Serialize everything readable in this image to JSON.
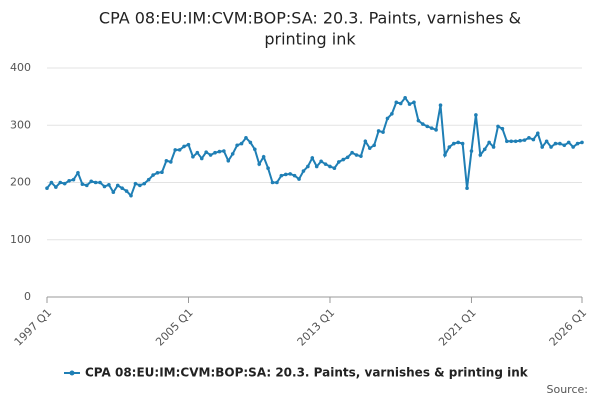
{
  "chart_data": {
    "type": "line",
    "title": [
      "CPA 08:EU:IM:CVM:BOP:SA: 20.3. Paints, varnishes &",
      "printing ink"
    ],
    "categories": [
      "1997 Q1",
      null,
      null,
      null,
      null,
      null,
      null,
      null,
      null,
      null,
      null,
      null,
      null,
      null,
      null,
      null,
      null,
      null,
      null,
      null,
      null,
      null,
      null,
      null,
      null,
      null,
      null,
      null,
      null,
      null,
      null,
      null,
      "2005 Q1",
      null,
      null,
      null,
      null,
      null,
      null,
      null,
      null,
      null,
      null,
      null,
      null,
      null,
      null,
      null,
      null,
      null,
      null,
      null,
      null,
      null,
      null,
      null,
      null,
      null,
      null,
      null,
      null,
      null,
      null,
      null,
      "2013 Q1",
      null,
      null,
      null,
      null,
      null,
      null,
      null,
      null,
      null,
      null,
      null,
      null,
      null,
      null,
      null,
      null,
      null,
      null,
      null,
      null,
      null,
      null,
      null,
      null,
      null,
      null,
      null,
      null,
      null,
      null,
      null,
      "2021 Q1",
      null,
      null,
      null,
      null,
      null,
      null,
      null,
      null,
      null,
      null,
      null,
      null,
      null,
      null,
      null,
      null,
      null,
      null,
      null,
      null,
      null,
      null,
      null,
      null,
      "2026 Q1"
    ],
    "series": [
      {
        "name": "CPA 08:EU:IM:CVM:BOP:SA: 20.3. Paints, varnishes & printing ink",
        "color": "#1f7fb5",
        "values": [
          190,
          200,
          192,
          200,
          198,
          203,
          205,
          217,
          197,
          195,
          202,
          200,
          200,
          193,
          196,
          183,
          195,
          190,
          185,
          177,
          198,
          195,
          198,
          205,
          213,
          217,
          218,
          238,
          236,
          257,
          257,
          263,
          266,
          245,
          252,
          242,
          253,
          248,
          252,
          254,
          255,
          238,
          250,
          265,
          268,
          278,
          270,
          258,
          232,
          245,
          225,
          200,
          200,
          212,
          214,
          215,
          212,
          206,
          220,
          228,
          243,
          228,
          237,
          232,
          228,
          225,
          236,
          240,
          244,
          252,
          248,
          246,
          272,
          260,
          265,
          290,
          288,
          312,
          320,
          340,
          338,
          348,
          337,
          340,
          308,
          302,
          298,
          295,
          292,
          335,
          248,
          262,
          268,
          270,
          268,
          190,
          255,
          318,
          248,
          258,
          270,
          262,
          298,
          294,
          272,
          272,
          272,
          273,
          274,
          278,
          275,
          286,
          262,
          272,
          262,
          268,
          268,
          265,
          270,
          262,
          268,
          270
        ]
      }
    ],
    "ylim": [
      0,
      400
    ],
    "yticks": [
      0,
      100,
      200,
      300,
      400
    ],
    "grid": true,
    "legend": "bottom",
    "source": "Source:"
  }
}
